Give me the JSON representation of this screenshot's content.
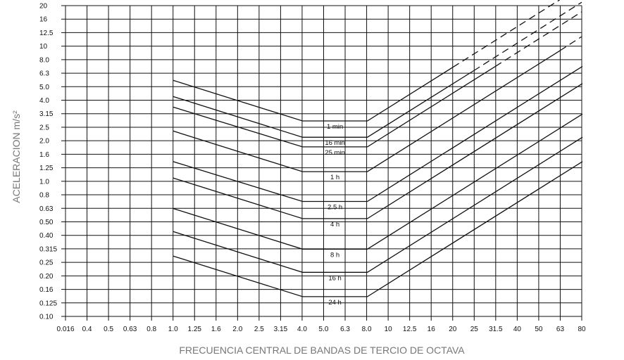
{
  "chart_data": {
    "type": "line",
    "title": "",
    "xlabel": "FRECUENCIA CENTRAL DE BANDAS DE TERCIO DE OCTAVA",
    "ylabel": "ACELERACION m/s²",
    "x_scale": "log",
    "y_scale": "log",
    "grid": true,
    "legend": "none",
    "categories": [
      "0.016",
      "0.4",
      "0.5",
      "0.63",
      "0.8",
      "1.0",
      "1.25",
      "1.6",
      "2.0",
      "2.5",
      "3.15",
      "4.0",
      "5.0",
      "6.3",
      "8.0",
      "10",
      "12.5",
      "16",
      "20",
      "25",
      "31.5",
      "40",
      "50",
      "63",
      "80"
    ],
    "y_ticks": [
      "20",
      "16",
      "12.5",
      "10",
      "8.0",
      "6.3",
      "5.0",
      "4.0",
      "3.15",
      "2.5",
      "2.0",
      "1.6",
      "1.25",
      "1.0",
      "0.8",
      "0.63",
      "0.50",
      "0.40",
      "0.315",
      "0.25",
      "0.20",
      "0.16",
      "0.125",
      "0.10"
    ],
    "ylim": [
      0.1,
      20
    ],
    "xlim": [
      0.315,
      80
    ],
    "series": [
      {
        "name": "1 min",
        "values": [
          {
            "x": 1.0,
            "y": 5.6
          },
          {
            "x": 4.0,
            "y": 2.8
          },
          {
            "x": 8.0,
            "y": 2.8
          },
          {
            "x": 20,
            "y": 7.0
          }
        ],
        "dashed_continuation": [
          {
            "x": 20,
            "y": 7.0
          },
          {
            "x": 80,
            "y": 28
          }
        ]
      },
      {
        "name": "16 min",
        "values": [
          {
            "x": 1.0,
            "y": 4.25
          },
          {
            "x": 4.0,
            "y": 2.12
          },
          {
            "x": 8.0,
            "y": 2.12
          },
          {
            "x": 25,
            "y": 6.6
          }
        ],
        "dashed_continuation": [
          {
            "x": 25,
            "y": 6.6
          },
          {
            "x": 80,
            "y": 21.2
          }
        ]
      },
      {
        "name": "25 min",
        "values": [
          {
            "x": 1.0,
            "y": 3.55
          },
          {
            "x": 4.0,
            "y": 1.8
          },
          {
            "x": 8.0,
            "y": 1.8
          },
          {
            "x": 31.5,
            "y": 7.1
          }
        ],
        "dashed_continuation": [
          {
            "x": 31.5,
            "y": 7.1
          },
          {
            "x": 80,
            "y": 18
          }
        ]
      },
      {
        "name": "1 h",
        "values": [
          {
            "x": 1.0,
            "y": 2.36
          },
          {
            "x": 4.0,
            "y": 1.18
          },
          {
            "x": 8.0,
            "y": 1.18
          },
          {
            "x": 63,
            "y": 9.3
          }
        ],
        "dashed_continuation": [
          {
            "x": 63,
            "y": 9.3
          },
          {
            "x": 80,
            "y": 11.8
          }
        ]
      },
      {
        "name": "2.5 h",
        "values": [
          {
            "x": 1.0,
            "y": 1.4
          },
          {
            "x": 4.0,
            "y": 0.71
          },
          {
            "x": 8.0,
            "y": 0.71
          },
          {
            "x": 80,
            "y": 7.1
          }
        ]
      },
      {
        "name": "4 h",
        "values": [
          {
            "x": 1.0,
            "y": 1.06
          },
          {
            "x": 4.0,
            "y": 0.53
          },
          {
            "x": 8.0,
            "y": 0.53
          },
          {
            "x": 80,
            "y": 5.3
          }
        ]
      },
      {
        "name": "8 h",
        "values": [
          {
            "x": 1.0,
            "y": 0.63
          },
          {
            "x": 4.0,
            "y": 0.315
          },
          {
            "x": 8.0,
            "y": 0.315
          },
          {
            "x": 80,
            "y": 3.15
          }
        ]
      },
      {
        "name": "16 h",
        "values": [
          {
            "x": 1.0,
            "y": 0.425
          },
          {
            "x": 4.0,
            "y": 0.212
          },
          {
            "x": 8.0,
            "y": 0.212
          },
          {
            "x": 80,
            "y": 2.12
          }
        ]
      },
      {
        "name": "24 h",
        "values": [
          {
            "x": 1.0,
            "y": 0.28
          },
          {
            "x": 4.0,
            "y": 0.14
          },
          {
            "x": 8.0,
            "y": 0.14
          },
          {
            "x": 80,
            "y": 1.4
          }
        ]
      }
    ]
  }
}
